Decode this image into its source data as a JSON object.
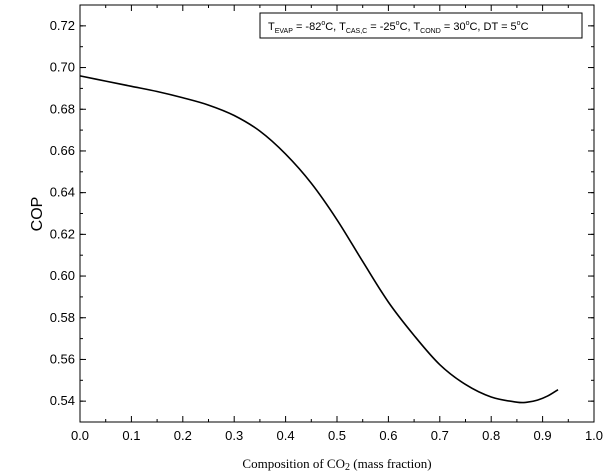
{
  "chart_data": {
    "type": "line",
    "xlabel_main": "Composition of CO",
    "xlabel_sub": "2",
    "xlabel_rest": " (mass fraction)",
    "ylabel": "COP",
    "xlim": [
      0.0,
      1.0
    ],
    "ylim": [
      0.53,
      0.73
    ],
    "x_ticks": [
      "0.0",
      "0.1",
      "0.2",
      "0.3",
      "0.4",
      "0.5",
      "0.6",
      "0.7",
      "0.8",
      "0.9",
      "1.0"
    ],
    "y_ticks": [
      "0.54",
      "0.56",
      "0.58",
      "0.60",
      "0.62",
      "0.64",
      "0.66",
      "0.68",
      "0.70",
      "0.72"
    ],
    "grid": false,
    "legend": "none",
    "annotation": {
      "t1": "T",
      "t1_sub": "EVAP",
      "v1": " = -82",
      "u1_sup": "o",
      "u1": "C, ",
      "t2": "T",
      "t2_sub": "CAS,C",
      "v2": " = -25",
      "u2_sup": "o",
      "u2": "C, ",
      "t3": "T",
      "t3_sub": "COND",
      "v3": " = 30",
      "u3_sup": "o",
      "u3": "C, ",
      "t4": "DT = 5",
      "u4_sup": "o",
      "u4": "C"
    },
    "series": [
      {
        "color": "#000000",
        "x": [
          0.0,
          0.05,
          0.1,
          0.15,
          0.2,
          0.25,
          0.3,
          0.35,
          0.4,
          0.45,
          0.5,
          0.55,
          0.6,
          0.65,
          0.7,
          0.75,
          0.8,
          0.85,
          0.87,
          0.89,
          0.91,
          0.93
        ],
        "y": [
          0.696,
          0.6935,
          0.691,
          0.6885,
          0.6855,
          0.682,
          0.677,
          0.6695,
          0.6585,
          0.6445,
          0.627,
          0.607,
          0.5875,
          0.5715,
          0.5575,
          0.548,
          0.542,
          0.5395,
          0.5395,
          0.5405,
          0.5425,
          0.5455
        ]
      }
    ]
  }
}
